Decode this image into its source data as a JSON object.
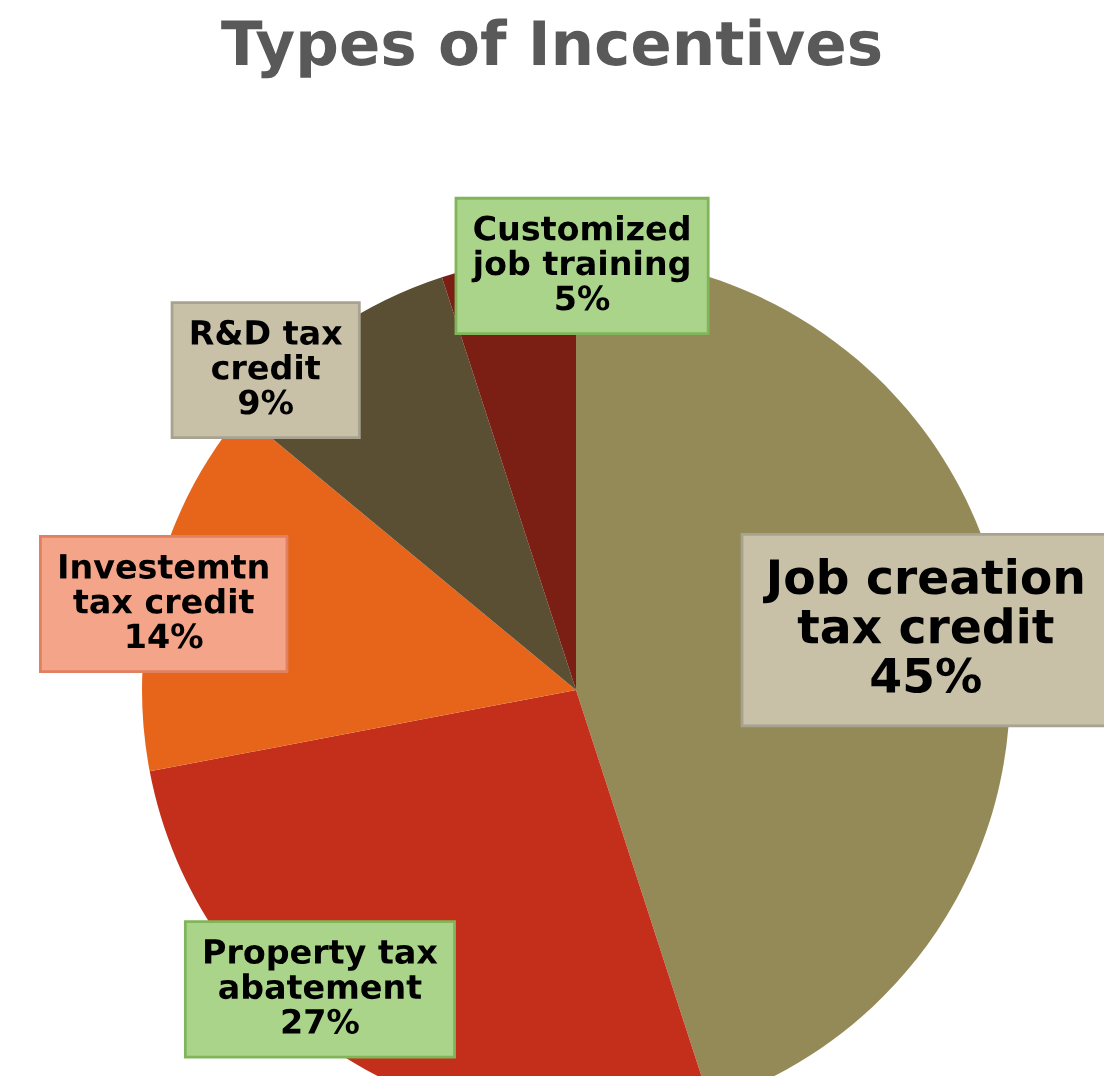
{
  "chart_data": {
    "type": "pie",
    "title": "Types of Incentives",
    "categories": [
      "Job creation\ntax credit",
      "Property tax\nabatement",
      "Investemtn\ntax credit",
      "R&D tax\ncredit",
      "Customized\njob training"
    ],
    "values": [
      45,
      27,
      14,
      9,
      5
    ],
    "colors": [
      "#948a58",
      "#c42f1b",
      "#e7651a",
      "#5a4f33",
      "#7b1f15"
    ],
    "value_labels": [
      "45%",
      "27%",
      "14%",
      "9%",
      "5%"
    ],
    "legend": false
  }
}
